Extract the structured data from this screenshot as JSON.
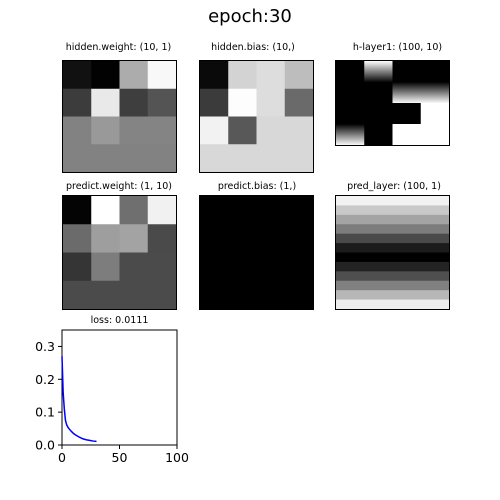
{
  "figure": {
    "title": "epoch:30"
  },
  "panels": [
    {
      "id": "hidden-weight",
      "title": "hidden.weight: (10, 1)",
      "type": "heatmap",
      "grid": [
        [
          "#111111",
          "#020202",
          "#acacac",
          "#f8f8f8"
        ],
        [
          "#3c3c3c",
          "#e9e9e9",
          "#3e3e3e",
          "#545454"
        ],
        [
          "#828282",
          "#999999",
          "#848484",
          "#848484"
        ],
        [
          "#828282",
          "#828282",
          "#828282",
          "#828282"
        ]
      ]
    },
    {
      "id": "hidden-bias",
      "title": "hidden.bias: (10,)",
      "type": "heatmap",
      "grid": [
        [
          "#0a0a0a",
          "#d3d3d3",
          "#dddddd",
          "#bdbdbd"
        ],
        [
          "#3b3b3b",
          "#fdfdfd",
          "#dddddd",
          "#6a6a6a"
        ],
        [
          "#f2f2f2",
          "#585858",
          "#d8d8d8",
          "#d8d8d8"
        ],
        [
          "#d8d8d8",
          "#d8d8d8",
          "#d8d8d8",
          "#d8d8d8"
        ]
      ]
    },
    {
      "id": "h-layer1",
      "title": "h-layer1: (100, 10)",
      "type": "activations",
      "grid": [
        [
          "black",
          "grad-down",
          "black",
          "black"
        ],
        [
          "black",
          "black",
          "grad-up",
          "grad-up"
        ],
        [
          "black",
          "black",
          "black",
          "white"
        ],
        [
          "grad-up",
          "black",
          "white",
          "white"
        ]
      ]
    },
    {
      "id": "predict-weight",
      "title": "predict.weight: (1, 10)",
      "type": "heatmap",
      "grid": [
        [
          "#040404",
          "#ffffff",
          "#6f6f6f",
          "#f1f1f1"
        ],
        [
          "#6b6b6b",
          "#9e9e9e",
          "#a3a3a3",
          "#4a4a4a"
        ],
        [
          "#353535",
          "#7d7d7d",
          "#4b4b4b",
          "#4b4b4b"
        ],
        [
          "#4b4b4b",
          "#4b4b4b",
          "#4b4b4b",
          "#4b4b4b"
        ]
      ]
    },
    {
      "id": "predict-bias",
      "title": "predict.bias: (1,)",
      "type": "heatmap",
      "grid": [
        [
          "#000000"
        ]
      ]
    },
    {
      "id": "pred-layer",
      "title": "pred_layer: (100, 1)",
      "type": "bands",
      "rows": [
        "#f2f2f2",
        "#c9c9c9",
        "#a4a4a4",
        "#7d7d7d",
        "#4a4a4a",
        "#1c1c1c",
        "#000000",
        "#232323",
        "#4f4f4f",
        "#808080",
        "#b7b7b7",
        "#ededed"
      ]
    }
  ],
  "chart_data": {
    "type": "line",
    "title": "loss: 0.0111",
    "x": [
      0,
      1,
      2,
      3,
      4,
      5,
      6,
      8,
      10,
      12,
      15,
      18,
      21,
      24,
      27,
      30
    ],
    "series": [
      {
        "values": [
          0.27,
          0.16,
          0.11,
          0.075,
          0.062,
          0.055,
          0.05,
          0.042,
          0.035,
          0.03,
          0.024,
          0.019,
          0.016,
          0.014,
          0.012,
          0.0111
        ],
        "color": "#0000ff"
      }
    ],
    "xlim": [
      0,
      100
    ],
    "ylim": [
      0,
      0.35
    ],
    "xticks": [
      0,
      50,
      100
    ],
    "yticks": [
      0.0,
      0.1,
      0.2,
      0.3
    ],
    "ytick_labels": [
      "0.0",
      "0.1",
      "0.2",
      "0.3"
    ],
    "grid": false
  }
}
